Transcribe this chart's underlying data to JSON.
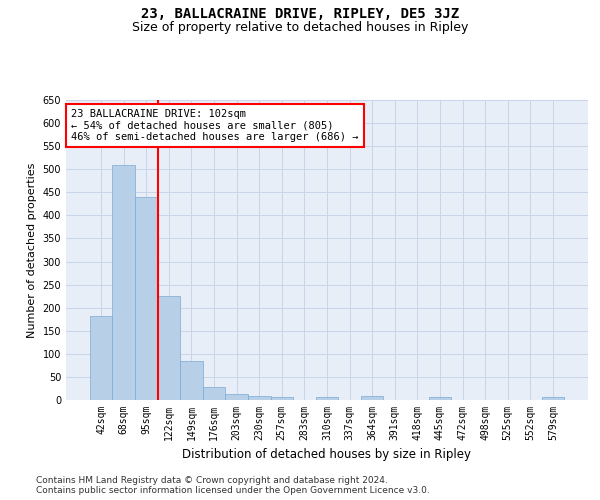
{
  "title": "23, BALLACRAINE DRIVE, RIPLEY, DE5 3JZ",
  "subtitle": "Size of property relative to detached houses in Ripley",
  "xlabel": "Distribution of detached houses by size in Ripley",
  "ylabel": "Number of detached properties",
  "categories": [
    "42sqm",
    "68sqm",
    "95sqm",
    "122sqm",
    "149sqm",
    "176sqm",
    "203sqm",
    "230sqm",
    "257sqm",
    "283sqm",
    "310sqm",
    "337sqm",
    "364sqm",
    "391sqm",
    "418sqm",
    "445sqm",
    "472sqm",
    "498sqm",
    "525sqm",
    "552sqm",
    "579sqm"
  ],
  "values": [
    183,
    510,
    440,
    225,
    85,
    28,
    14,
    9,
    6,
    0,
    6,
    0,
    8,
    0,
    0,
    6,
    0,
    0,
    0,
    0,
    6
  ],
  "bar_color": "#b8cfe8",
  "bar_edge_color": "#7aaad4",
  "grid_color": "#c8d4e8",
  "background_color": "#e8eef8",
  "annotation_line1": "23 BALLACRAINE DRIVE: 102sqm",
  "annotation_line2": "← 54% of detached houses are smaller (805)",
  "annotation_line3": "46% of semi-detached houses are larger (686) →",
  "annotation_box_color": "white",
  "annotation_box_edge_color": "red",
  "vline_color": "red",
  "vline_x_idx": 2.5,
  "ylim": [
    0,
    650
  ],
  "yticks": [
    0,
    50,
    100,
    150,
    200,
    250,
    300,
    350,
    400,
    450,
    500,
    550,
    600,
    650
  ],
  "footer_text": "Contains HM Land Registry data © Crown copyright and database right 2024.\nContains public sector information licensed under the Open Government Licence v3.0.",
  "title_fontsize": 10,
  "subtitle_fontsize": 9,
  "xlabel_fontsize": 8.5,
  "ylabel_fontsize": 8,
  "tick_fontsize": 7,
  "annotation_fontsize": 7.5,
  "footer_fontsize": 6.5
}
